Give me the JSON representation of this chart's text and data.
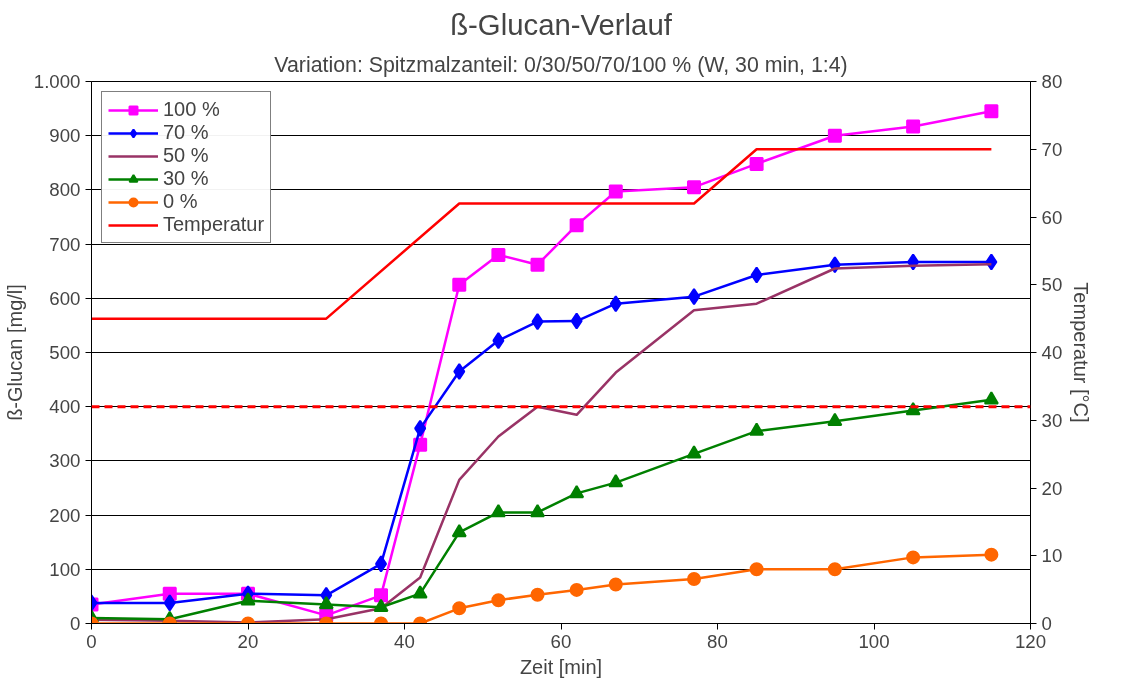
{
  "chart_data": {
    "type": "line",
    "title": "ß-Glucan-Verlauf",
    "subtitle": "Variation: Spitzmalzanteil: 0/30/50/70/100 % (W, 30 min, 1:4)",
    "xlabel": "Zeit [min]",
    "ylabel": "ß-Glucan [mg/l]",
    "y2label": "Temperatur [°C]",
    "x": [
      0,
      10,
      20,
      30,
      37,
      42,
      47,
      52,
      57,
      62,
      67,
      77,
      85,
      95,
      105,
      115
    ],
    "series": [
      {
        "name": "100 %",
        "color": "#ff00ff",
        "marker": "square",
        "values": [
          35,
          55,
          55,
          15,
          52,
          330,
          625,
          680,
          662,
          735,
          797,
          805,
          848,
          900,
          917,
          945
        ]
      },
      {
        "name": "70 %",
        "color": "#0000ff",
        "marker": "diamond",
        "values": [
          38,
          38,
          55,
          52,
          110,
          360,
          465,
          522,
          557,
          558,
          590,
          603,
          643,
          662,
          667,
          667
        ]
      },
      {
        "name": "50 %",
        "color": "#993366",
        "marker": "none",
        "values": [
          7,
          5,
          2,
          8,
          28,
          85,
          265,
          345,
          400,
          385,
          463,
          578,
          590,
          655,
          660,
          663
        ]
      },
      {
        "name": "30 %",
        "color": "#008000",
        "marker": "triangle",
        "values": [
          10,
          8,
          42,
          35,
          30,
          55,
          168,
          205,
          205,
          240,
          260,
          313,
          355,
          373,
          393,
          413
        ]
      },
      {
        "name": "0 %",
        "color": "#ff6600",
        "marker": "circle",
        "values": [
          0,
          0,
          0,
          0,
          0,
          0,
          28,
          43,
          53,
          62,
          72,
          82,
          100,
          100,
          122,
          127
        ]
      },
      {
        "name": "Temperatur",
        "color": "#ff0000",
        "marker": "none",
        "axis": "y2",
        "x": [
          0,
          30,
          47,
          77,
          85,
          115
        ],
        "values": [
          45,
          45,
          62,
          62,
          70,
          70
        ]
      }
    ],
    "ref_lines": [
      {
        "axis": "y",
        "value": 400,
        "label": null,
        "color": "#ff0000",
        "line_style": "dashed"
      }
    ],
    "xlim": [
      0,
      120
    ],
    "xticks": [
      0,
      20,
      40,
      60,
      80,
      100,
      120
    ],
    "ylim": [
      0,
      1000
    ],
    "yticks": [
      0,
      100,
      200,
      300,
      400,
      500,
      600,
      700,
      800,
      900,
      {
        "value": 1000,
        "label": "1.000"
      }
    ],
    "y2lim": [
      0,
      80
    ],
    "y2ticks": [
      0,
      10,
      20,
      30,
      40,
      50,
      60,
      70,
      80
    ],
    "grid": "y",
    "legend": "top left",
    "line_style": "solid"
  }
}
